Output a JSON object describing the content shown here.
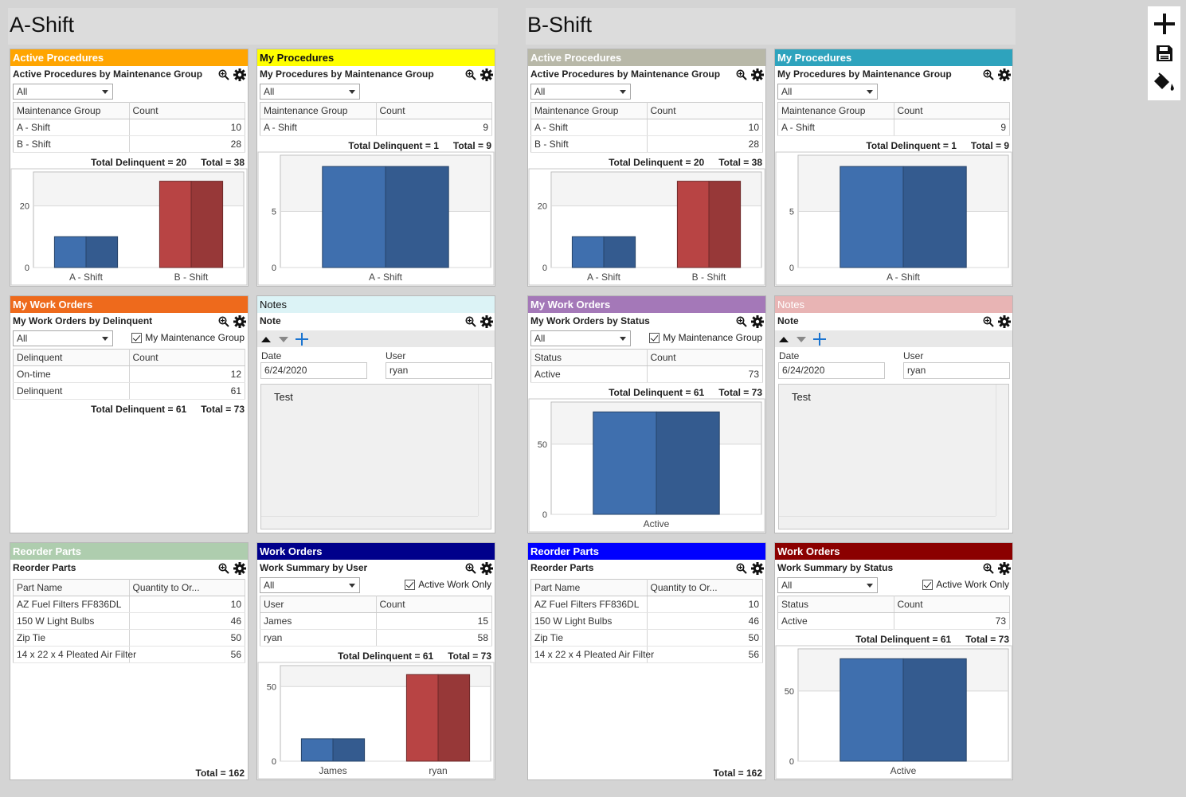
{
  "shifts": {
    "a": "A-Shift",
    "b": "B-Shift"
  },
  "toolbar": {
    "add": "plus-icon",
    "save": "floppy-disk-icon",
    "theme": "paint-bucket-icon"
  },
  "a": {
    "active_procedures": {
      "title": "Active Procedures",
      "subtitle": "Active Procedures by Maintenance Group",
      "filter": "All",
      "columns": [
        "Maintenance Group",
        "Count"
      ],
      "rows": [
        [
          "A - Shift",
          "10"
        ],
        [
          "B - Shift",
          "28"
        ]
      ],
      "total_delinquent": "Total Delinquent = 20",
      "total": "Total = 38",
      "chart_data": {
        "type": "bar",
        "categories": [
          "A - Shift",
          "B - Shift"
        ],
        "values": [
          10,
          28
        ],
        "colors": [
          "#3f6fae",
          "#b84444"
        ],
        "yticks": [
          0,
          20
        ],
        "ylim": [
          0,
          31
        ]
      }
    },
    "my_procedures": {
      "title": "My Procedures",
      "subtitle": "My Procedures by Maintenance Group",
      "filter": "All",
      "columns": [
        "Maintenance Group",
        "Count"
      ],
      "rows": [
        [
          "A - Shift",
          "9"
        ]
      ],
      "total_delinquent": "Total Delinquent = 1",
      "total": "Total = 9",
      "chart_data": {
        "type": "bar",
        "categories": [
          "A - Shift"
        ],
        "values": [
          9
        ],
        "colors": [
          "#3f6fae"
        ],
        "yticks": [
          0,
          5
        ],
        "ylim": [
          0,
          10
        ]
      }
    },
    "my_work_orders": {
      "title": "My Work Orders",
      "subtitle": "My Work Orders by Delinquent",
      "filter": "All",
      "checkbox": "My Maintenance Group",
      "columns": [
        "Delinquent",
        "Count"
      ],
      "rows": [
        [
          "On-time",
          "12"
        ],
        [
          "Delinquent",
          "61"
        ]
      ],
      "total_delinquent": "Total Delinquent = 61",
      "total": "Total = 73"
    },
    "notes": {
      "title": "Notes",
      "subtitle": "Note",
      "date_label": "Date",
      "date": "6/24/2020",
      "user_label": "User",
      "user": "ryan",
      "text": "Test"
    },
    "reorder_parts": {
      "title": "Reorder Parts",
      "subtitle": "Reorder Parts",
      "columns": [
        "Part Name",
        "Quantity to Or..."
      ],
      "rows": [
        [
          "AZ Fuel Filters FF836DL",
          "10"
        ],
        [
          "150 W Light Bulbs",
          "46"
        ],
        [
          "Zip Tie",
          "50"
        ],
        [
          "14 x 22 x 4 Pleated Air Filter",
          "56"
        ]
      ],
      "total": "Total = 162"
    },
    "work_orders": {
      "title": "Work Orders",
      "subtitle": "Work Summary by User",
      "filter": "All",
      "checkbox": "Active Work Only",
      "columns": [
        "User",
        "Count"
      ],
      "rows": [
        [
          "James",
          "15"
        ],
        [
          "ryan",
          "58"
        ]
      ],
      "total_delinquent": "Total Delinquent = 61",
      "total": "Total = 73",
      "chart_data": {
        "type": "bar",
        "categories": [
          "James",
          "ryan"
        ],
        "values": [
          15,
          58
        ],
        "colors": [
          "#3f6fae",
          "#b84444"
        ],
        "yticks": [
          0,
          50
        ],
        "ylim": [
          0,
          64
        ]
      }
    }
  },
  "b": {
    "active_procedures": {
      "title": "Active Procedures",
      "subtitle": "Active Procedures by Maintenance Group",
      "filter": "All",
      "columns": [
        "Maintenance Group",
        "Count"
      ],
      "rows": [
        [
          "A - Shift",
          "10"
        ],
        [
          "B - Shift",
          "28"
        ]
      ],
      "total_delinquent": "Total Delinquent = 20",
      "total": "Total = 38",
      "chart_data": {
        "type": "bar",
        "categories": [
          "A - Shift",
          "B - Shift"
        ],
        "values": [
          10,
          28
        ],
        "colors": [
          "#3f6fae",
          "#b84444"
        ],
        "yticks": [
          0,
          20
        ],
        "ylim": [
          0,
          31
        ]
      }
    },
    "my_procedures": {
      "title": "My Procedures",
      "subtitle": "My Procedures by Maintenance Group",
      "filter": "All",
      "columns": [
        "Maintenance Group",
        "Count"
      ],
      "rows": [
        [
          "A - Shift",
          "9"
        ]
      ],
      "total_delinquent": "Total Delinquent = 1",
      "total": "Total = 9",
      "chart_data": {
        "type": "bar",
        "categories": [
          "A - Shift"
        ],
        "values": [
          9
        ],
        "colors": [
          "#3f6fae"
        ],
        "yticks": [
          0,
          5
        ],
        "ylim": [
          0,
          10
        ]
      }
    },
    "my_work_orders": {
      "title": "My Work Orders",
      "subtitle": "My Work Orders by Status",
      "filter": "All",
      "checkbox": "My Maintenance Group",
      "columns": [
        "Status",
        "Count"
      ],
      "rows": [
        [
          "Active",
          "73"
        ]
      ],
      "total_delinquent": "Total Delinquent = 61",
      "total": "Total = 73",
      "chart_data": {
        "type": "bar",
        "categories": [
          "Active"
        ],
        "values": [
          73
        ],
        "colors": [
          "#3f6fae"
        ],
        "yticks": [
          0,
          50
        ],
        "ylim": [
          0,
          80
        ]
      }
    },
    "notes": {
      "title": "Notes",
      "subtitle": "Note",
      "date_label": "Date",
      "date": "6/24/2020",
      "user_label": "User",
      "user": "ryan",
      "text": "Test"
    },
    "reorder_parts": {
      "title": "Reorder Parts",
      "subtitle": "Reorder Parts",
      "columns": [
        "Part Name",
        "Quantity to Or..."
      ],
      "rows": [
        [
          "AZ Fuel Filters FF836DL",
          "10"
        ],
        [
          "150 W Light Bulbs",
          "46"
        ],
        [
          "Zip Tie",
          "50"
        ],
        [
          "14 x 22 x 4 Pleated Air Filter",
          "56"
        ]
      ],
      "total": "Total = 162"
    },
    "work_orders": {
      "title": "Work Orders",
      "subtitle": "Work Summary by Status",
      "filter": "All",
      "checkbox": "Active Work Only",
      "columns": [
        "Status",
        "Count"
      ],
      "rows": [
        [
          "Active",
          "73"
        ]
      ],
      "total_delinquent": "Total Delinquent = 61",
      "total": "Total = 73",
      "chart_data": {
        "type": "bar",
        "categories": [
          "Active"
        ],
        "values": [
          73
        ],
        "colors": [
          "#3f6fae"
        ],
        "yticks": [
          0,
          50
        ],
        "ylim": [
          0,
          80
        ]
      }
    }
  },
  "header_colors": {
    "a_active": "#ffa500",
    "a_myproc": "#ffff00",
    "a_mywo": "#ee6a1c",
    "a_notes": "#dcf3f6",
    "a_reorder": "#aecdae",
    "a_wo": "#00008b",
    "b_active": "#b8b8a8",
    "b_myproc": "#2ea3bd",
    "b_mywo": "#a478b8",
    "b_notes": "#e8b4b4",
    "b_reorder": "#0000ff",
    "b_wo": "#8b0000"
  }
}
